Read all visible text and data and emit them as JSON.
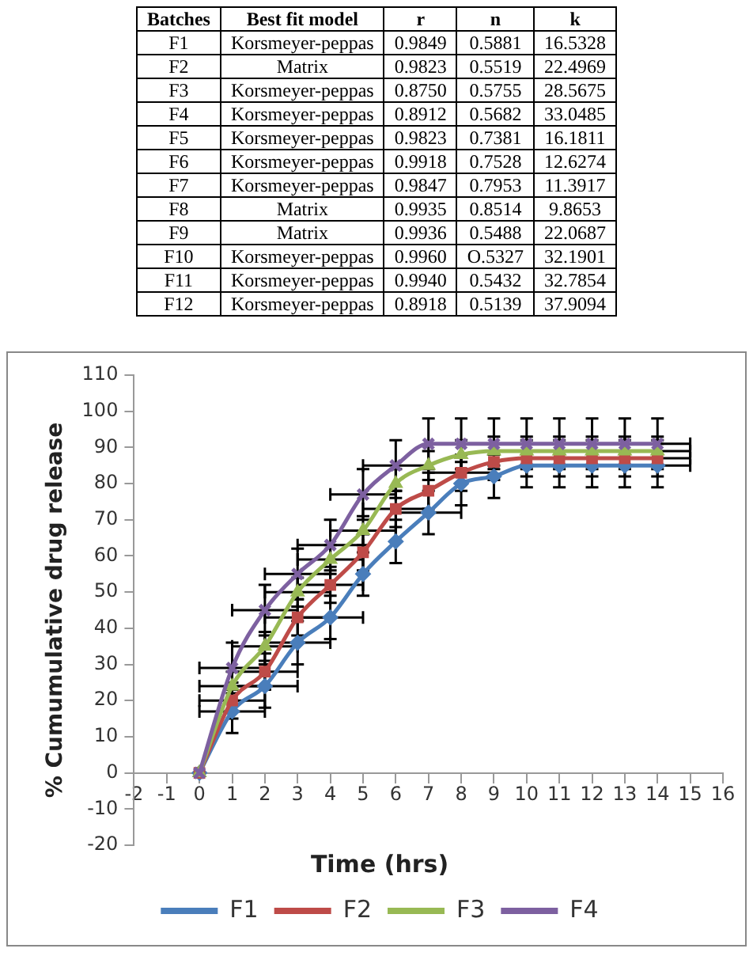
{
  "chart_data": [
    {
      "type": "other",
      "categories": [
        "Batches",
        "Best fit model",
        "r",
        "n",
        "k"
      ],
      "cell_labels": [
        [
          "F1",
          "Korsmeyer-peppas",
          "0.9849",
          "0.5881",
          "16.5328"
        ],
        [
          "F2",
          "Matrix",
          "0.9823",
          "0.5519",
          "22.4969"
        ],
        [
          "F3",
          "Korsmeyer-peppas",
          "0.8750",
          "0.5755",
          "28.5675"
        ],
        [
          "F4",
          "Korsmeyer-peppas",
          "0.8912",
          "0.5682",
          "33.0485"
        ],
        [
          "F5",
          "Korsmeyer-peppas",
          "0.9823",
          "0.7381",
          "16.1811"
        ],
        [
          "F6",
          "Korsmeyer-peppas",
          "0.9918",
          "0.7528",
          "12.6274"
        ],
        [
          "F7",
          "Korsmeyer-peppas",
          "0.9847",
          "0.7953",
          "11.3917"
        ],
        [
          "F8",
          "Matrix",
          "0.9935",
          "0.8514",
          "9.8653"
        ],
        [
          "F9",
          "Matrix",
          "0.9936",
          "0.5488",
          "22.0687"
        ],
        [
          "F10",
          "Korsmeyer-peppas",
          "0.9960",
          "O.5327",
          "32.1901"
        ],
        [
          "F11",
          "Korsmeyer-peppas",
          "0.9940",
          "0.5432",
          "32.7854"
        ],
        [
          "F12",
          "Korsmeyer-peppas",
          "0.8918",
          "0.5139",
          "37.9094"
        ]
      ]
    },
    {
      "type": "line",
      "xlabel": "Time (hrs)",
      "ylabel": "% Cumumulative drug release",
      "x": [
        0,
        1,
        2,
        3,
        4,
        5,
        6,
        7,
        8,
        9,
        10,
        11,
        12,
        13,
        14
      ],
      "xlim": [
        -2,
        16
      ],
      "xticks": [
        -2,
        -1,
        0,
        1,
        2,
        3,
        4,
        5,
        6,
        7,
        8,
        9,
        10,
        11,
        12,
        13,
        14,
        15,
        16
      ],
      "ylim": [
        -20,
        110
      ],
      "yticks": [
        -20,
        -10,
        0,
        10,
        20,
        30,
        40,
        50,
        60,
        70,
        80,
        90,
        100,
        110
      ],
      "grid": false,
      "legend": "bottom",
      "line_style": "solid",
      "series": [
        {
          "name": "F1",
          "color": "#4a7ebb",
          "marker": "diamond",
          "values": [
            0,
            17,
            24,
            36,
            43,
            55,
            64,
            72,
            80,
            82,
            85,
            85,
            85,
            85,
            85
          ],
          "errors": [
            null,
            6,
            6,
            6,
            6,
            6,
            6,
            6,
            6,
            6,
            6,
            6,
            6,
            6,
            6
          ],
          "xerrors": [
            null,
            1,
            1,
            1,
            1,
            null,
            null,
            1,
            null,
            null,
            null,
            null,
            null,
            null,
            1
          ]
        },
        {
          "name": "F2",
          "color": "#be4b48",
          "marker": "square",
          "values": [
            0,
            20,
            28,
            43,
            52,
            61,
            73,
            78,
            83,
            86,
            87,
            87,
            87,
            87,
            87
          ],
          "errors": [
            null,
            5,
            5,
            5,
            5,
            5,
            5,
            5,
            5,
            5,
            5,
            5,
            5,
            5,
            5
          ],
          "xerrors": [
            null,
            1,
            1,
            1,
            1,
            null,
            1,
            null,
            1,
            null,
            null,
            null,
            null,
            null,
            1
          ]
        },
        {
          "name": "F3",
          "color": "#98b954",
          "marker": "triangle",
          "values": [
            0,
            24,
            35,
            50,
            59,
            67,
            80,
            85,
            88,
            89,
            89,
            89,
            89,
            89,
            89
          ],
          "errors": [
            null,
            4,
            4,
            4,
            4,
            4,
            4,
            4,
            4,
            4,
            4,
            4,
            4,
            4,
            4
          ],
          "xerrors": [
            null,
            1,
            1,
            1,
            1,
            1,
            null,
            null,
            null,
            null,
            null,
            null,
            null,
            null,
            1
          ]
        },
        {
          "name": "F4",
          "color": "#7d60a0",
          "marker": "cross",
          "values": [
            0,
            29,
            45,
            55,
            63,
            77,
            85,
            91,
            91,
            91,
            91,
            91,
            91,
            91,
            91
          ],
          "errors": [
            null,
            7,
            7,
            7,
            7,
            7,
            7,
            7,
            7,
            7,
            7,
            7,
            7,
            7,
            7
          ],
          "xerrors": [
            null,
            1,
            1,
            1,
            1,
            1,
            1,
            null,
            null,
            null,
            null,
            null,
            null,
            null,
            1
          ]
        }
      ]
    }
  ]
}
